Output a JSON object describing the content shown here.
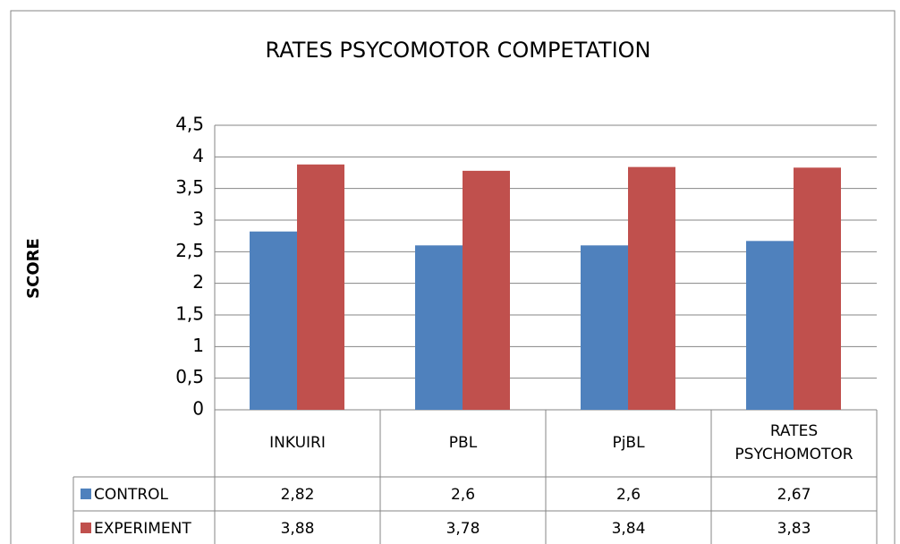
{
  "chart_data": {
    "type": "bar",
    "title": "RATES PSYCOMOTOR COMPETATION",
    "y_label": "SCORE",
    "categories": [
      "INKUIRI",
      "PBL",
      "PjBL",
      "RATES PSYCHOMOTOR"
    ],
    "series": [
      {
        "name": "CONTROL",
        "color": "#4f81bd",
        "values": [
          2.82,
          2.6,
          2.6,
          2.67
        ],
        "value_labels": [
          "2,82",
          "2,6",
          "2,6",
          "2,67"
        ]
      },
      {
        "name": "EXPERIMENT",
        "color": "#c0504d",
        "values": [
          3.88,
          3.78,
          3.84,
          3.83
        ],
        "value_labels": [
          "3,88",
          "3,78",
          "3,84",
          "3,83"
        ]
      }
    ],
    "ylim": [
      0,
      4.5
    ],
    "yticks": [
      0,
      {
        "value": 0.5,
        "label": "0,5"
      },
      1,
      {
        "value": 1.5,
        "label": "1,5"
      },
      2,
      {
        "value": 2.5,
        "label": "2,5"
      },
      3,
      {
        "value": 3.5,
        "label": "3,5"
      },
      4,
      {
        "value": 4.5,
        "label": "4,5"
      }
    ],
    "grid": true
  }
}
